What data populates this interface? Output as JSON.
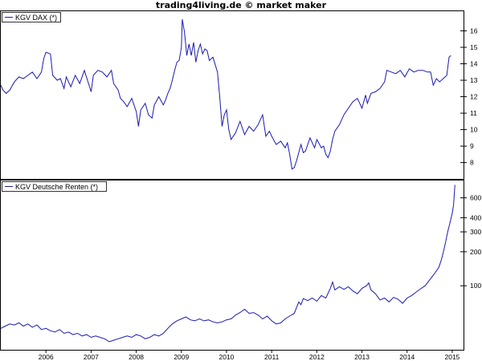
{
  "header": {
    "title": "trading4living.de © market maker"
  },
  "colors": {
    "line": "#1a1ab0",
    "frame": "#000000",
    "background": "#ffffff"
  },
  "x_axis": {
    "labels": [
      "2006",
      "2007",
      "2008",
      "2009",
      "2010",
      "2011",
      "2012",
      "2013",
      "2014",
      "2015"
    ]
  },
  "chart_data": [
    {
      "type": "line",
      "title": "",
      "legend": "KGV DAX (*)",
      "legend_position": "top-left",
      "y_axis_side": "right",
      "ylim": [
        7.3,
        16.9
      ],
      "y_ticks": [
        8,
        9,
        10,
        11,
        12,
        13,
        14,
        15,
        16
      ],
      "x_range": [
        2005.0,
        2015.25
      ],
      "series": [
        {
          "points": [
            [
              2005.0,
              12.7
            ],
            [
              2005.05,
              12.4
            ],
            [
              2005.12,
              12.2
            ],
            [
              2005.2,
              12.4
            ],
            [
              2005.3,
              12.9
            ],
            [
              2005.4,
              13.2
            ],
            [
              2005.5,
              13.1
            ],
            [
              2005.6,
              13.3
            ],
            [
              2005.7,
              13.5
            ],
            [
              2005.8,
              13.1
            ],
            [
              2005.9,
              13.5
            ],
            [
              2005.95,
              14.3
            ],
            [
              2006.0,
              14.7
            ],
            [
              2006.1,
              14.6
            ],
            [
              2006.15,
              13.3
            ],
            [
              2006.25,
              13.0
            ],
            [
              2006.32,
              13.1
            ],
            [
              2006.4,
              12.5
            ],
            [
              2006.45,
              13.2
            ],
            [
              2006.55,
              12.6
            ],
            [
              2006.65,
              13.3
            ],
            [
              2006.75,
              12.8
            ],
            [
              2006.85,
              13.6
            ],
            [
              2006.92,
              13.0
            ],
            [
              2007.0,
              12.3
            ],
            [
              2007.05,
              13.3
            ],
            [
              2007.15,
              13.6
            ],
            [
              2007.25,
              13.5
            ],
            [
              2007.35,
              13.2
            ],
            [
              2007.45,
              13.6
            ],
            [
              2007.5,
              12.8
            ],
            [
              2007.6,
              12.4
            ],
            [
              2007.65,
              11.9
            ],
            [
              2007.72,
              11.7
            ],
            [
              2007.8,
              11.4
            ],
            [
              2007.9,
              11.9
            ],
            [
              2008.0,
              11.1
            ],
            [
              2008.05,
              10.2
            ],
            [
              2008.1,
              11.2
            ],
            [
              2008.2,
              11.6
            ],
            [
              2008.27,
              10.9
            ],
            [
              2008.35,
              10.7
            ],
            [
              2008.4,
              11.5
            ],
            [
              2008.5,
              12.0
            ],
            [
              2008.6,
              11.5
            ],
            [
              2008.65,
              11.8
            ],
            [
              2008.7,
              12.2
            ],
            [
              2008.75,
              12.5
            ],
            [
              2008.8,
              13.0
            ],
            [
              2008.85,
              13.6
            ],
            [
              2008.9,
              14.1
            ],
            [
              2008.95,
              14.2
            ],
            [
              2009.0,
              15.0
            ],
            [
              2009.02,
              16.7
            ],
            [
              2009.07,
              15.9
            ],
            [
              2009.12,
              14.5
            ],
            [
              2009.17,
              15.2
            ],
            [
              2009.22,
              14.5
            ],
            [
              2009.27,
              15.3
            ],
            [
              2009.32,
              14.1
            ],
            [
              2009.37,
              14.8
            ],
            [
              2009.42,
              15.2
            ],
            [
              2009.47,
              14.6
            ],
            [
              2009.52,
              14.9
            ],
            [
              2009.57,
              14.8
            ],
            [
              2009.62,
              14.2
            ],
            [
              2009.7,
              14.4
            ],
            [
              2009.8,
              13.5
            ],
            [
              2009.85,
              12.0
            ],
            [
              2009.9,
              10.2
            ],
            [
              2009.95,
              10.9
            ],
            [
              2010.0,
              11.2
            ],
            [
              2010.05,
              10.0
            ],
            [
              2010.1,
              9.4
            ],
            [
              2010.2,
              9.8
            ],
            [
              2010.3,
              10.5
            ],
            [
              2010.4,
              9.7
            ],
            [
              2010.5,
              10.2
            ],
            [
              2010.6,
              9.9
            ],
            [
              2010.7,
              10.3
            ],
            [
              2010.8,
              10.9
            ],
            [
              2010.87,
              9.6
            ],
            [
              2010.95,
              9.9
            ],
            [
              2011.0,
              9.6
            ],
            [
              2011.1,
              9.1
            ],
            [
              2011.2,
              9.3
            ],
            [
              2011.3,
              8.9
            ],
            [
              2011.35,
              9.2
            ],
            [
              2011.4,
              8.5
            ],
            [
              2011.45,
              7.6
            ],
            [
              2011.5,
              7.7
            ],
            [
              2011.55,
              8.1
            ],
            [
              2011.6,
              8.6
            ],
            [
              2011.65,
              9.1
            ],
            [
              2011.7,
              8.6
            ],
            [
              2011.75,
              8.7
            ],
            [
              2011.85,
              9.5
            ],
            [
              2011.95,
              8.9
            ],
            [
              2012.0,
              9.4
            ],
            [
              2012.1,
              8.9
            ],
            [
              2012.15,
              9.0
            ],
            [
              2012.2,
              8.5
            ],
            [
              2012.25,
              8.3
            ],
            [
              2012.3,
              8.7
            ],
            [
              2012.35,
              9.4
            ],
            [
              2012.4,
              9.9
            ],
            [
              2012.5,
              10.3
            ],
            [
              2012.6,
              10.9
            ],
            [
              2012.7,
              11.3
            ],
            [
              2012.8,
              11.7
            ],
            [
              2012.9,
              11.9
            ],
            [
              2013.0,
              11.3
            ],
            [
              2013.08,
              12.1
            ],
            [
              2013.12,
              11.6
            ],
            [
              2013.2,
              12.2
            ],
            [
              2013.3,
              12.3
            ],
            [
              2013.4,
              12.5
            ],
            [
              2013.5,
              12.9
            ],
            [
              2013.55,
              13.6
            ],
            [
              2013.65,
              13.5
            ],
            [
              2013.75,
              13.4
            ],
            [
              2013.85,
              13.6
            ],
            [
              2013.95,
              13.2
            ],
            [
              2014.05,
              13.7
            ],
            [
              2014.15,
              13.5
            ],
            [
              2014.25,
              13.6
            ],
            [
              2014.35,
              13.6
            ],
            [
              2014.45,
              13.5
            ],
            [
              2014.52,
              13.5
            ],
            [
              2014.58,
              12.7
            ],
            [
              2014.65,
              13.1
            ],
            [
              2014.72,
              12.9
            ],
            [
              2014.8,
              13.1
            ],
            [
              2014.88,
              13.3
            ],
            [
              2014.93,
              14.4
            ],
            [
              2014.97,
              14.5
            ]
          ]
        }
      ]
    },
    {
      "type": "line",
      "title": "",
      "legend": "KGV Deutsche Renten (*)",
      "legend_position": "top-left",
      "y_axis_side": "right",
      "y_scale": "log",
      "ylim": [
        29,
        800
      ],
      "y_ticks": [
        100,
        200,
        300,
        400,
        600
      ],
      "x_range": [
        2005.0,
        2015.25
      ],
      "series": [
        {
          "points": [
            [
              2005.0,
              42
            ],
            [
              2005.1,
              44
            ],
            [
              2005.2,
              46
            ],
            [
              2005.3,
              45
            ],
            [
              2005.4,
              47
            ],
            [
              2005.5,
              44
            ],
            [
              2005.6,
              46
            ],
            [
              2005.7,
              43
            ],
            [
              2005.8,
              45
            ],
            [
              2005.9,
              41
            ],
            [
              2006.0,
              42
            ],
            [
              2006.1,
              40
            ],
            [
              2006.2,
              39
            ],
            [
              2006.3,
              41
            ],
            [
              2006.4,
              38
            ],
            [
              2006.5,
              39
            ],
            [
              2006.6,
              37
            ],
            [
              2006.7,
              38
            ],
            [
              2006.8,
              36
            ],
            [
              2006.9,
              37
            ],
            [
              2007.0,
              35
            ],
            [
              2007.1,
              36
            ],
            [
              2007.2,
              35
            ],
            [
              2007.3,
              34
            ],
            [
              2007.4,
              32
            ],
            [
              2007.5,
              33
            ],
            [
              2007.6,
              34
            ],
            [
              2007.7,
              35
            ],
            [
              2007.8,
              36
            ],
            [
              2007.9,
              35
            ],
            [
              2008.0,
              37
            ],
            [
              2008.1,
              36
            ],
            [
              2008.2,
              34
            ],
            [
              2008.3,
              35
            ],
            [
              2008.4,
              37
            ],
            [
              2008.5,
              36
            ],
            [
              2008.6,
              38
            ],
            [
              2008.7,
              42
            ],
            [
              2008.8,
              46
            ],
            [
              2008.9,
              49
            ],
            [
              2009.0,
              51
            ],
            [
              2009.1,
              53
            ],
            [
              2009.2,
              50
            ],
            [
              2009.3,
              49
            ],
            [
              2009.4,
              51
            ],
            [
              2009.5,
              49
            ],
            [
              2009.6,
              50
            ],
            [
              2009.7,
              48
            ],
            [
              2009.8,
              47
            ],
            [
              2009.9,
              48
            ],
            [
              2010.0,
              50
            ],
            [
              2010.1,
              51
            ],
            [
              2010.2,
              55
            ],
            [
              2010.3,
              58
            ],
            [
              2010.4,
              62
            ],
            [
              2010.5,
              57
            ],
            [
              2010.6,
              58
            ],
            [
              2010.7,
              55
            ],
            [
              2010.8,
              51
            ],
            [
              2010.9,
              54
            ],
            [
              2011.0,
              49
            ],
            [
              2011.1,
              46
            ],
            [
              2011.2,
              47
            ],
            [
              2011.3,
              51
            ],
            [
              2011.4,
              54
            ],
            [
              2011.5,
              57
            ],
            [
              2011.55,
              64
            ],
            [
              2011.6,
              72
            ],
            [
              2011.65,
              68
            ],
            [
              2011.7,
              77
            ],
            [
              2011.8,
              74
            ],
            [
              2011.9,
              78
            ],
            [
              2012.0,
              73
            ],
            [
              2012.1,
              82
            ],
            [
              2012.2,
              78
            ],
            [
              2012.3,
              95
            ],
            [
              2012.35,
              108
            ],
            [
              2012.4,
              92
            ],
            [
              2012.5,
              98
            ],
            [
              2012.6,
              93
            ],
            [
              2012.7,
              98
            ],
            [
              2012.8,
              90
            ],
            [
              2012.9,
              85
            ],
            [
              2013.0,
              95
            ],
            [
              2013.1,
              100
            ],
            [
              2013.15,
              106
            ],
            [
              2013.2,
              92
            ],
            [
              2013.3,
              85
            ],
            [
              2013.4,
              75
            ],
            [
              2013.5,
              78
            ],
            [
              2013.6,
              72
            ],
            [
              2013.7,
              79
            ],
            [
              2013.8,
              76
            ],
            [
              2013.9,
              70
            ],
            [
              2014.0,
              78
            ],
            [
              2014.1,
              82
            ],
            [
              2014.2,
              88
            ],
            [
              2014.3,
              94
            ],
            [
              2014.4,
              100
            ],
            [
              2014.5,
              113
            ],
            [
              2014.6,
              127
            ],
            [
              2014.7,
              145
            ],
            [
              2014.75,
              165
            ],
            [
              2014.8,
              196
            ],
            [
              2014.85,
              240
            ],
            [
              2014.9,
              300
            ],
            [
              2014.95,
              360
            ],
            [
              2015.0,
              440
            ],
            [
              2015.03,
              520
            ],
            [
              2015.06,
              780
            ]
          ]
        }
      ]
    }
  ]
}
